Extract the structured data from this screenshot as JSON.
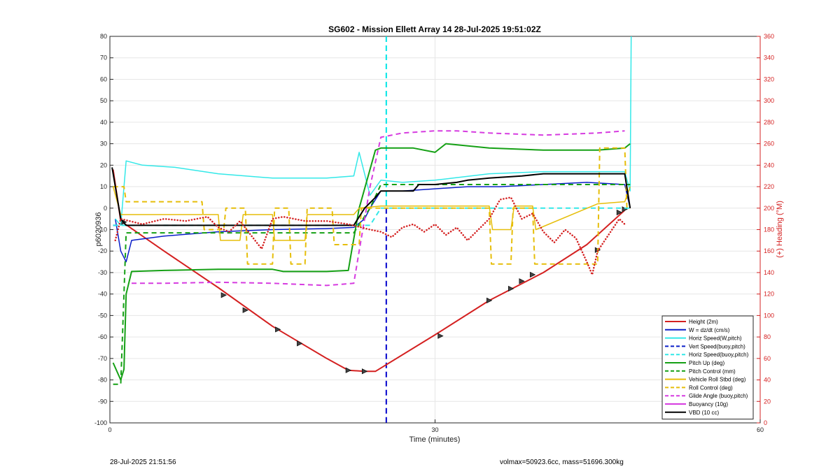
{
  "footer": {
    "left": "28-Jul-2025 21:51:56",
    "right": "volmax=50923.6cc, mass=51696.300kg"
  },
  "chart_data": {
    "type": "line",
    "title": "SG602 - Mission Ellett Array 14 28-Jul-2025 19:51:02Z",
    "xlabel": "Time (minutes)",
    "ylabel": "p6020936",
    "y2label": "(+) Heading (°M)",
    "xlim": [
      0,
      60
    ],
    "ylim": [
      -100,
      80
    ],
    "y2lim": [
      0,
      360
    ],
    "xticks": [
      0,
      30,
      60
    ],
    "yticks": [
      80,
      70,
      60,
      50,
      40,
      30,
      20,
      10,
      0,
      -10,
      -20,
      -30,
      -40,
      -50,
      -60,
      -70,
      -80,
      -90,
      -100
    ],
    "y2ticks": [
      360,
      340,
      320,
      300,
      280,
      260,
      240,
      220,
      200,
      180,
      160,
      140,
      120,
      100,
      80,
      60,
      40,
      20,
      0
    ],
    "grid": true,
    "legend_position": "bottom-right",
    "vertical_lines": [
      {
        "x": 25.5,
        "color": "#00e5e5",
        "y_from": 0,
        "y_to": 80
      },
      {
        "x": 25.5,
        "color": "#0000cc",
        "y_from": -100,
        "y_to": 0
      }
    ],
    "series": [
      {
        "name": "Height (2m)",
        "color": "#d42020",
        "style": "solid",
        "width": 2,
        "x": [
          0.3,
          1,
          5,
          10,
          15,
          20,
          22,
          23.5,
          24.5,
          30,
          35,
          40,
          44,
          47.5
        ],
        "y": [
          18,
          -6,
          -20,
          -37,
          -55,
          -70,
          -75.5,
          -76,
          -76,
          -59,
          -43,
          -30,
          -17,
          -1
        ],
        "markers_x": [
          1.3,
          10.5,
          12.5,
          15.5,
          17.5,
          22,
          23.5,
          30.5,
          35,
          37,
          38,
          39,
          45,
          47,
          47.5
        ],
        "markers_y": [
          -6.5,
          -40.5,
          -47.5,
          -56.5,
          -63,
          -75.5,
          -76,
          -59.5,
          -43,
          -37.5,
          -34,
          -31,
          -19.5,
          -2,
          -0.5
        ]
      },
      {
        "name": "W = dz/dt (cm/s)",
        "color": "#0a1ec8",
        "style": "solid",
        "width": 1.5,
        "x": [
          0.5,
          1,
          1.5,
          2,
          5,
          10,
          15,
          20,
          22.5,
          23.5,
          24,
          25,
          27,
          30,
          33,
          36,
          40,
          44,
          47.5,
          48
        ],
        "y": [
          -5,
          -20,
          -25,
          -15,
          -13,
          -11,
          -10,
          -9.5,
          -9,
          -5,
          0,
          8,
          8,
          9,
          10,
          10,
          11,
          12,
          11,
          0
        ]
      },
      {
        "name": "Horiz Speed(W,pitch)",
        "color": "#33e8e8",
        "style": "solid",
        "width": 1.5,
        "x": [
          0.5,
          1,
          1.5,
          3,
          6,
          10,
          15,
          20,
          22.5,
          23,
          24,
          25,
          27,
          30,
          35,
          40,
          45,
          47.5,
          48,
          48.1
        ],
        "y": [
          -5,
          -8,
          22,
          20,
          19,
          16,
          14,
          14,
          15,
          26,
          6,
          13,
          12,
          13,
          16,
          17,
          17,
          17,
          8,
          80
        ]
      },
      {
        "name": "Vert Speed(buoy,pitch)",
        "color": "#0a1ec8",
        "style": "dash",
        "width": 2,
        "x": [
          0.3,
          1
        ],
        "y": [
          -8,
          -8
        ]
      },
      {
        "name": "Horiz Speed(buoy,pitch)",
        "color": "#33e8e8",
        "style": "dash",
        "width": 2,
        "x": [
          0.3,
          24,
          25,
          48
        ],
        "y": [
          -8,
          -8,
          0,
          0
        ]
      },
      {
        "name": "Pitch Up (deg)",
        "color": "#15a015",
        "style": "solid",
        "width": 2,
        "x": [
          0.3,
          1,
          1.3,
          1.5,
          2,
          5,
          10,
          15,
          16,
          20,
          22,
          22.3,
          23,
          24.5,
          25,
          28,
          30,
          31,
          35,
          40,
          45,
          47.5,
          48
        ],
        "y": [
          -72,
          -80,
          -75,
          -40,
          -29.5,
          -29,
          -28.5,
          -28.5,
          -29.5,
          -29.5,
          -29,
          -20,
          0,
          27,
          28,
          28,
          26,
          30,
          28,
          27,
          27,
          28,
          30
        ]
      },
      {
        "name": "Pitch Control (mm)",
        "color": "#15a015",
        "style": "dash",
        "width": 2,
        "x": [
          0.3,
          1,
          1.3,
          1.5,
          2,
          22.5,
          24,
          25,
          48
        ],
        "y": [
          -82,
          -82,
          -40,
          -11.5,
          -11.5,
          -11.5,
          0,
          11,
          11
        ]
      },
      {
        "name": "Vehicle Roll Stbd (deg)",
        "color": "#e6be0a",
        "style": "solid",
        "width": 1.5,
        "x": [
          0.3,
          1,
          2,
          5,
          10,
          10.2,
          12,
          12.3,
          15,
          15.2,
          18,
          18.2,
          20,
          22.5,
          23,
          25,
          30,
          35,
          35.3,
          37,
          37.3,
          39,
          39.3,
          45,
          47.5,
          48
        ],
        "y": [
          10,
          -3,
          -3,
          -3,
          -3,
          -15,
          -15,
          -3,
          -3,
          -15,
          -15,
          -3,
          -3,
          -3,
          0,
          1,
          1,
          1,
          -10,
          -10,
          1,
          1,
          -10,
          2,
          3,
          10
        ]
      },
      {
        "name": "Roll Control (deg)",
        "color": "#e6be0a",
        "style": "dash",
        "width": 2,
        "x": [
          0.3,
          1.3,
          1.5,
          8.5,
          8.7,
          10.5,
          10.7,
          12.5,
          12.7,
          15,
          15.2,
          16.5,
          16.7,
          18,
          18.2,
          20.5,
          20.7,
          23,
          23.2,
          35,
          35.2,
          37,
          37.2,
          39,
          39.2,
          45,
          45.2,
          47.5,
          47.7,
          48
        ],
        "y": [
          10,
          10,
          3,
          3,
          -10,
          -10,
          0,
          0,
          -26,
          -26,
          0,
          0,
          -26,
          -26,
          0,
          0,
          -17,
          -17,
          0,
          0,
          -26,
          -26,
          0,
          0,
          -26,
          -26,
          28,
          28,
          0,
          0
        ]
      },
      {
        "name": "Glide Angle (buoy,pitch)",
        "color": "#d63ce0",
        "style": "dash",
        "width": 2,
        "x": [
          2,
          5,
          10,
          15,
          20,
          22.5,
          23,
          24,
          25,
          27,
          30,
          32,
          35,
          40,
          45,
          47.5
        ],
        "y": [
          -35,
          -35,
          -34.5,
          -35,
          -36,
          -35,
          -20,
          10,
          33,
          35,
          36,
          36,
          35,
          34,
          35,
          36
        ]
      },
      {
        "name": "Buoyancy (10g)",
        "color": "#d63ce0",
        "style": "solid",
        "width": 2,
        "x": [],
        "y": []
      },
      {
        "name": "VBD (10 cc)",
        "color": "#000000",
        "style": "solid",
        "width": 2,
        "x": [
          0.2,
          1,
          1.5,
          5,
          10,
          15,
          20,
          22.5,
          23.5,
          24.5,
          25,
          27,
          28,
          28.5,
          30,
          32,
          33,
          35,
          38,
          40,
          44,
          47.5,
          48
        ],
        "y": [
          19,
          -5,
          -8,
          -8,
          -8,
          -8,
          -8,
          -8,
          0,
          5,
          8,
          8,
          8,
          11,
          11,
          12,
          13,
          14,
          15,
          16,
          16,
          16,
          0
        ]
      },
      {
        "name": "Heading",
        "axis": "y2",
        "color": "#d42020",
        "style": "dot",
        "width": 2.5,
        "in_legend": false,
        "x": [
          0.5,
          1,
          3,
          5,
          7,
          9,
          10,
          11,
          12,
          13,
          14,
          15,
          16,
          18,
          20,
          22,
          24,
          25,
          26,
          27,
          28,
          29,
          30,
          31,
          32,
          33,
          34,
          35,
          36,
          37,
          38,
          39,
          40,
          41,
          42,
          43,
          44,
          44.5,
          45,
          46,
          47,
          47.5
        ],
        "y": [
          170,
          190,
          185,
          190,
          188,
          192,
          182,
          178,
          188,
          175,
          162,
          190,
          192,
          188,
          188,
          185,
          180,
          178,
          173,
          182,
          185,
          178,
          185,
          175,
          182,
          170,
          180,
          190,
          208,
          210,
          190,
          195,
          178,
          168,
          180,
          172,
          150,
          138,
          160,
          175,
          190,
          185
        ]
      }
    ]
  }
}
